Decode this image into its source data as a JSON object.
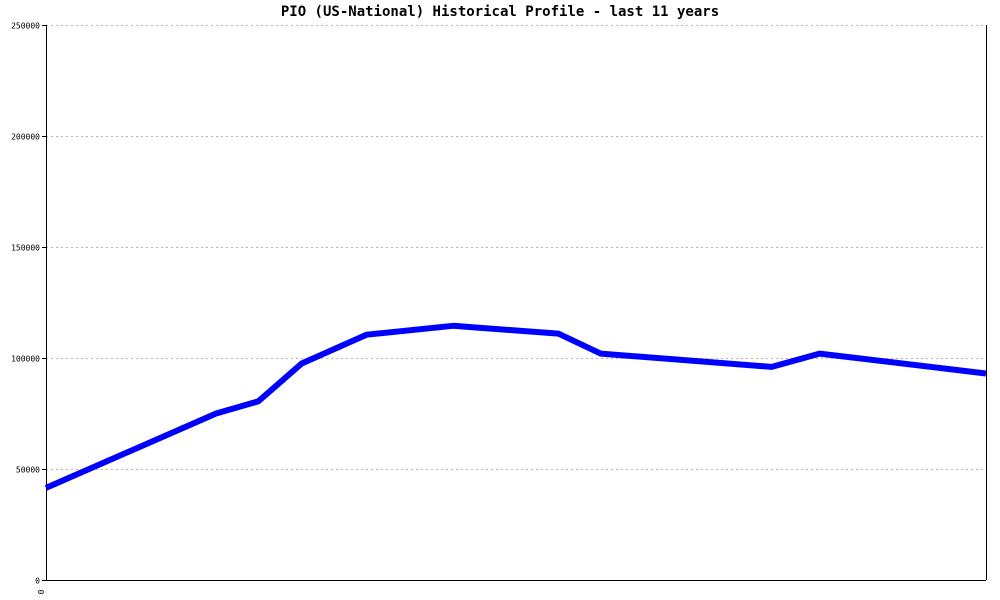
{
  "chart_data": {
    "type": "line",
    "title": "PIO (US-National) Historical Profile - last 11 years",
    "xlabel": "",
    "ylabel": "",
    "x_tick_labels": [
      "0"
    ],
    "y_ticks": [
      0,
      50000,
      100000,
      150000,
      200000,
      250000
    ],
    "y_tick_labels": [
      "0",
      "50000",
      "100000",
      "150000",
      "200000",
      "250000"
    ],
    "ylim": [
      0,
      250000
    ],
    "xlim": [
      0,
      1
    ],
    "grid": true,
    "legend": "none",
    "series": [
      {
        "color": "#0000ff",
        "x": [
          0,
          0.181,
          0.226,
          0.272,
          0.341,
          0.433,
          0.545,
          0.59,
          0.772,
          0.823,
          1.0
        ],
        "values": [
          41500,
          75000,
          80500,
          97500,
          110500,
          114500,
          111000,
          102000,
          96000,
          102000,
          93000
        ]
      }
    ]
  }
}
